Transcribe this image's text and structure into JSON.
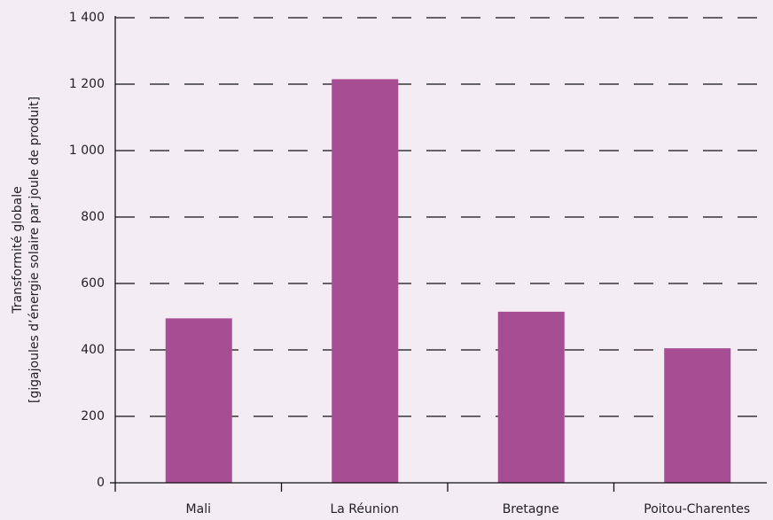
{
  "chart_data": {
    "type": "bar",
    "ylabel": [
      "Transformité globale",
      "[gigajoules d’énergie solaire par joule de produit]"
    ],
    "categories": [
      "Mali",
      "La Réunion",
      "Bretagne",
      "Poitou-Charentes"
    ],
    "values": [
      495,
      1215,
      515,
      405
    ],
    "color": "#a64d94",
    "ylim": [
      0,
      1400
    ],
    "yticks": [
      0,
      200,
      400,
      600,
      800,
      {
        "value": 1000,
        "label": "1 000"
      },
      {
        "value": 1200,
        "label": "1 200"
      },
      {
        "value": 1400,
        "label": "1 400"
      }
    ],
    "grid": true
  }
}
